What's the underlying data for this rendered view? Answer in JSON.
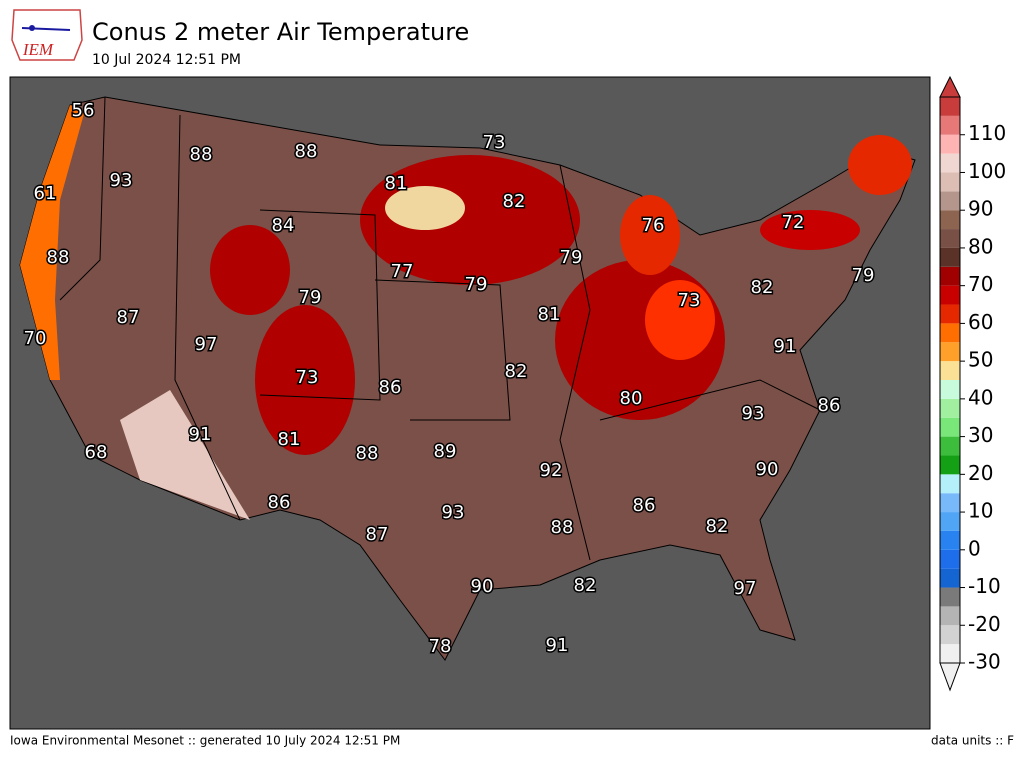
{
  "header": {
    "logo": "IEM",
    "title": "Conus 2 meter Air Temperature",
    "subtitle": "10 Jul 2024 12:51 PM"
  },
  "footer": {
    "left": "Iowa Environmental Mesonet :: generated 10 July 2024 12:51 PM",
    "right": "data units :: F"
  },
  "colorbar": {
    "lim": [
      -30,
      120
    ],
    "step": 5,
    "ticks": [
      -30,
      -20,
      -10,
      0,
      10,
      20,
      30,
      40,
      50,
      60,
      70,
      80,
      90,
      100,
      110
    ],
    "colors": [
      "#f0f0f0",
      "#d2d2d2",
      "#b4b4b4",
      "#7a7a7a",
      "#1464d2",
      "#1e6eeb",
      "#2882f0",
      "#50a5f5",
      "#78b9fa",
      "#b4f0fa",
      "#14a014",
      "#3cbe3c",
      "#78e678",
      "#a0f0a0",
      "#c8fadc",
      "#fae196",
      "#ffa02a",
      "#ff6e00",
      "#e62800",
      "#c80000",
      "#a00000",
      "#5a3228",
      "#785046",
      "#8c6450",
      "#b4968c",
      "#dcbeb4",
      "#f0d7d2",
      "#ffb4b4",
      "#e67878",
      "#c83c3c"
    ]
  },
  "stations": [
    56,
    61,
    93,
    88,
    88,
    73,
    81,
    82,
    76,
    72,
    88,
    84,
    77,
    79,
    79,
    79,
    87,
    79,
    81,
    73,
    82,
    70,
    97,
    73,
    86,
    82,
    91,
    80,
    91,
    81,
    88,
    89,
    93,
    86,
    68,
    92,
    90,
    86,
    93,
    88,
    86,
    82,
    87,
    90,
    82,
    97,
    78,
    91
  ]
}
